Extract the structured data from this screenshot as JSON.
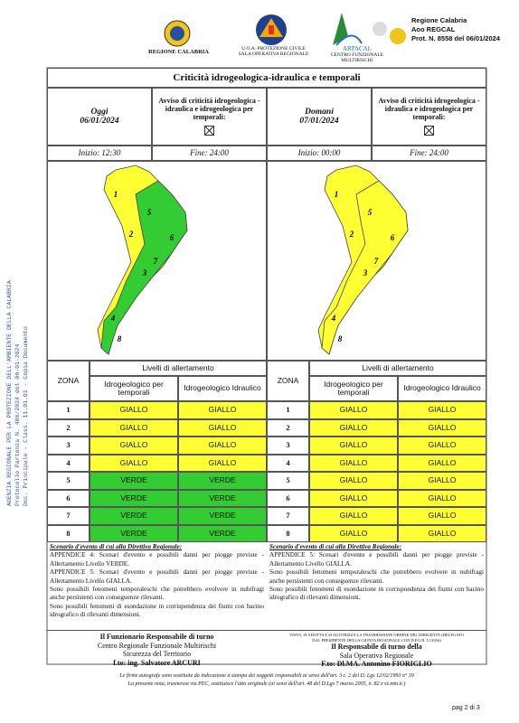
{
  "header": {
    "logo1": "REGIONE CALABRIA",
    "logo2_line1": "U.O.A. PROTEZIONE CIVILE",
    "logo2_line2": "SALA OPERATIVA REGIONALE",
    "logo3_name": "ARPACAL",
    "logo3_line1": "CENTRO FUNZIONALE",
    "logo3_line2": "MULTIRISCHI",
    "protocol": [
      "Regione Calabria",
      "Aoo REGCAL",
      "Prot. N. 8558 del 06/01/2024"
    ]
  },
  "side_stamp": [
    "AGENZIA REGIONALE PER LA PROTEZIONE DELL'AMBIENTE DELLA CALABRIA",
    "Protocollo Partenza N. 486/2024 del 06-01-2024",
    "Doc. Principale - Class. 11.01.01 - Copia Documento"
  ],
  "title": "Criticità idrogeologica-idraulica e temporali",
  "table_headers": {
    "zone": "ZONA",
    "levels": "Livelli di allertamento",
    "col1": "Idrogeologico per temporali",
    "col2": "Idrogeologico Idraulico"
  },
  "panels": [
    {
      "day": "Oggi",
      "date": "06/01/2024",
      "avviso": "Avviso di criticità idrogeologica - idraulica e idrogeologica per temporali:",
      "start": "Inizio: 12:30",
      "end": "Fine: 24:00",
      "rows": [
        [
          "1",
          "GIALLO",
          "GIALLO"
        ],
        [
          "2",
          "GIALLO",
          "GIALLO"
        ],
        [
          "3",
          "GIALLO",
          "GIALLO"
        ],
        [
          "4",
          "GIALLO",
          "GIALLO"
        ],
        [
          "5",
          "VERDE",
          "VERDE"
        ],
        [
          "6",
          "VERDE",
          "VERDE"
        ],
        [
          "7",
          "VERDE",
          "VERDE"
        ],
        [
          "8",
          "VERDE",
          "VERDE"
        ]
      ],
      "row_colors": [
        "#ffff33",
        "#ffff33",
        "#ffff33",
        "#ffff33",
        "#33cc33",
        "#33cc33",
        "#33cc33",
        "#33cc33"
      ],
      "scenario_heading": "Scenario d'evento di cui alla Direttiva Regionale:",
      "scenario": [
        "APPENDICE 4: Scenari d'evento e possibili danni per piogge previste - Allertamento Livello VERDE.",
        "APPENDICE 5: Scenari d'evento e possibili danni per piogge previste - Allertamento Livello GIALLA.",
        "Sono possibili fenomeni temporaleschi che potrebbero evolvere in nubifragi anche persistenti con conseguenze rilevanti.",
        "Sono possibili fenomeni di esondazione in corrispondenza dei fiumi con bacino idrografico di rilevanti dimensioni."
      ],
      "signature_note": "",
      "signature": [
        "Il Funzionario Responsabile di turno",
        "Centro Regionale Funzionale Multirischi",
        "Sicurezza del Territorio",
        "f.to: ing. Salvatore ARCURI"
      ]
    },
    {
      "day": "Domani",
      "date": "07/01/2024",
      "avviso": "Avviso di criticità idrogeologica - idraulica e idrogeologica per temporali:",
      "start": "Inizio: 00:00",
      "end": "Fine: 24:00",
      "rows": [
        [
          "1",
          "GIALLO",
          "GIALLO"
        ],
        [
          "2",
          "GIALLO",
          "GIALLO"
        ],
        [
          "3",
          "GIALLO",
          "GIALLO"
        ],
        [
          "4",
          "GIALLO",
          "GIALLO"
        ],
        [
          "5",
          "GIALLO",
          "GIALLO"
        ],
        [
          "6",
          "GIALLO",
          "GIALLO"
        ],
        [
          "7",
          "GIALLO",
          "GIALLO"
        ],
        [
          "8",
          "GIALLO",
          "GIALLO"
        ]
      ],
      "row_colors": [
        "#ffff33",
        "#ffff33",
        "#ffff33",
        "#ffff33",
        "#ffff33",
        "#ffff33",
        "#ffff33",
        "#ffff33"
      ],
      "scenario_heading": "Scenario d'evento di cui alla Direttiva Regionale:",
      "scenario": [
        "APPENDICE 5: Scenari d'evento e possibili danni per piogge previste - Allertamento Livello GIALLA.",
        "Sono possibili fenomeni temporaleschi che potrebbero evolvere in nubifragi anche persistenti con conseguenze rilevanti.",
        "Sono possibili fenomeni di esondazione in corrispondenza dei fiumi con bacino idrografico di rilevanti dimensioni."
      ],
      "signature_note": "VISTO, SI ADOTTA E SI AUTORIZZA LA TRASMISSIONE ORDINE DEL DIRIGENTE (DELEGATO DAL PRESIDENTE DELLA GIUNTA REGIONALE CON D.P.G.R. 11/2016)",
      "signature": [
        "Il Responsabile di turno della",
        "Sala Operativa Regionale",
        "F.to: Dl.MA. Antonino FIORIGLIO"
      ]
    }
  ],
  "footnotes": [
    "Le firme autografe sono sostituite da indicazione a stampa dei soggetti responsabili ai sensi dell'art. 3 c. 2 del D. Lgs 12/02/1993 n° 39",
    "La presente nota, trasmessa via PEC, sostituisce l'atto originale (ai sensi dell'art. 48 del D.Lgs 7 marzo 2005, n. 82 e ss.mm.ii.)"
  ],
  "page": "pag 2 di 3"
}
